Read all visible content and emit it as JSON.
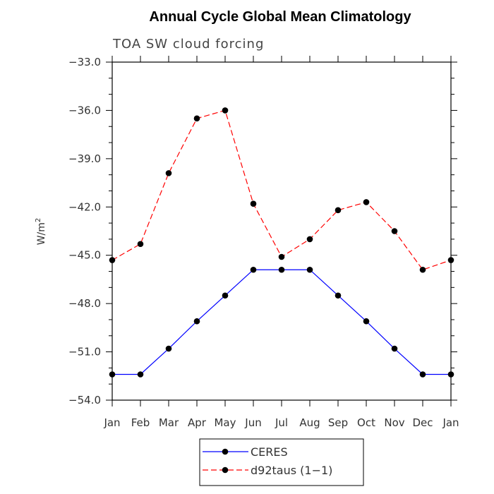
{
  "chart_data": {
    "type": "line",
    "title": "Annual Cycle Global Mean Climatology",
    "subtitle": "TOA SW cloud forcing",
    "ylabel": "W/m",
    "ylabel_superscript": "2",
    "xlabel": "",
    "ylim": [
      -54.0,
      -33.0
    ],
    "yticks": [
      -54.0,
      -51.0,
      -48.0,
      -45.0,
      -42.0,
      -39.0,
      -36.0,
      -33.0
    ],
    "ytick_labels": [
      "−54.0",
      "−51.0",
      "−48.0",
      "−45.0",
      "−42.0",
      "−39.0",
      "−36.0",
      "−33.0"
    ],
    "categories": [
      "Jan",
      "Feb",
      "Mar",
      "Apr",
      "May",
      "Jun",
      "Jul",
      "Aug",
      "Sep",
      "Oct",
      "Nov",
      "Dec",
      "Jan"
    ],
    "series": [
      {
        "name": "CERES",
        "color": "#0000ff",
        "dash": "solid",
        "values": [
          -52.4,
          -52.4,
          -50.8,
          -49.1,
          -47.5,
          -45.9,
          -45.9,
          -45.9,
          -47.5,
          -49.1,
          -50.8,
          -52.4,
          -52.4
        ]
      },
      {
        "name": "d92taus (1−1)",
        "color": "#ff0000",
        "dash": "dashed",
        "values": [
          -45.3,
          -44.3,
          -39.9,
          -36.5,
          -36.0,
          -41.8,
          -45.1,
          -44.0,
          -42.2,
          -41.7,
          -43.5,
          -45.9,
          -45.3
        ]
      }
    ],
    "grid": false,
    "legend_position": "bottom-center",
    "marker_color": "#000000"
  }
}
